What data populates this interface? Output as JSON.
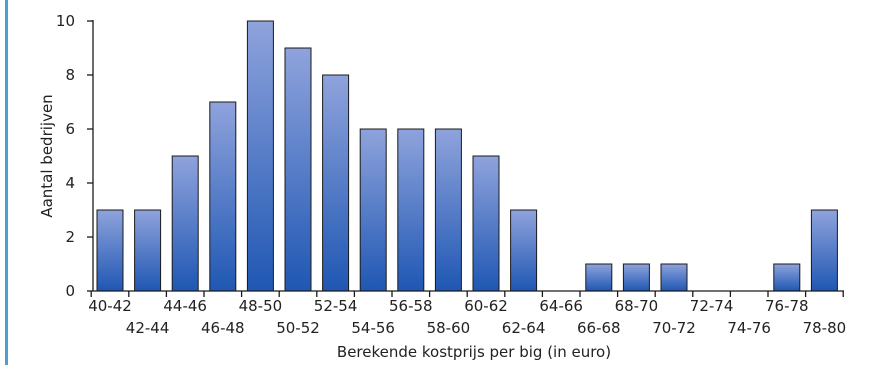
{
  "chart_data": {
    "type": "bar",
    "categories": [
      "40-42",
      "42-44",
      "44-46",
      "46-48",
      "48-50",
      "50-52",
      "52-54",
      "54-56",
      "56-58",
      "58-60",
      "60-62",
      "62-64",
      "64-66",
      "66-68",
      "68-70",
      "70-72",
      "72-74",
      "74-76",
      "76-78",
      "78-80"
    ],
    "values": [
      3,
      3,
      5,
      7,
      10,
      9,
      8,
      6,
      6,
      6,
      5,
      3,
      0,
      1,
      1,
      1,
      0,
      0,
      1,
      3
    ],
    "xlabel": "Berekende kostprijs per big (in euro)",
    "ylabel": "Aantal bedrijven",
    "ylim": [
      0,
      10
    ],
    "yticks": [
      0,
      2,
      4,
      6,
      8,
      10
    ],
    "grid": false,
    "bar_color_top": "#8fa3dc",
    "bar_color_bottom": "#1f57b3",
    "bar_stroke": "#1a1a1a"
  },
  "colors": {
    "left_rule": "#4a9fd4"
  }
}
